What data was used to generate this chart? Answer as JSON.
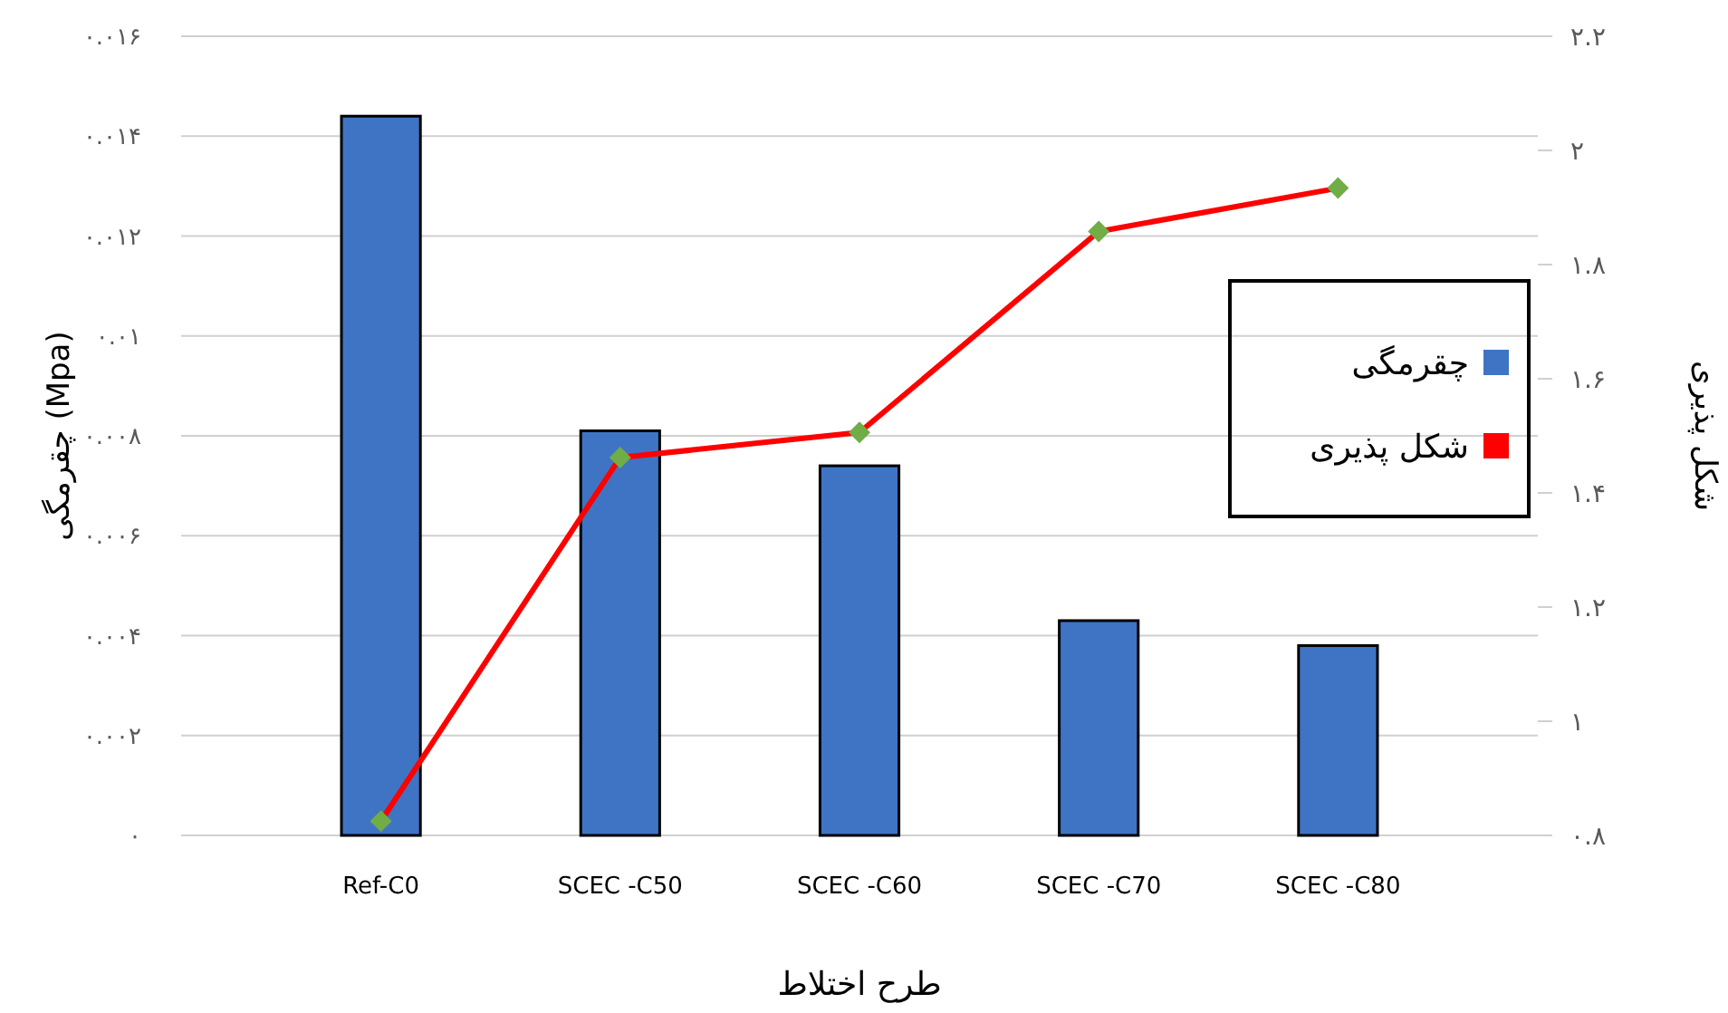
{
  "chart_data": {
    "type": "bar",
    "xlabel": "طرح اختلاط",
    "ylabel": "چقرمگی (Mpa)",
    "y2label": "شکل پذیری",
    "categories": [
      "Ref-C0",
      "SCEC -C50",
      "SCEC -C60",
      "SCEC -C70",
      "SCEC -C80"
    ],
    "series": [
      {
        "name": "چقرمگی",
        "color": "#3f74c4",
        "values": [
          0.0144,
          0.0081,
          0.0074,
          0.0043,
          0.0038
        ]
      },
      {
        "name": "شکل پذیری",
        "type": "line",
        "axis": "y2",
        "color": "#ff0000",
        "marker": "diamond",
        "values": [
          0.825,
          1.462,
          1.506,
          1.858,
          1.934
        ]
      }
    ],
    "ylim": [
      0,
      0.016
    ],
    "yticks": [
      {
        "value": 0,
        "label": "۰"
      },
      {
        "value": 0.002,
        "label": "۰.۰۰۲"
      },
      {
        "value": 0.004,
        "label": "۰.۰۰۴"
      },
      {
        "value": 0.006,
        "label": "۰.۰۰۶"
      },
      {
        "value": 0.008,
        "label": "۰.۰۰۸"
      },
      {
        "value": 0.01,
        "label": "۰.۰۱"
      },
      {
        "value": 0.012,
        "label": "۰.۰۱۲"
      },
      {
        "value": 0.014,
        "label": "۰.۰۱۴"
      },
      {
        "value": 0.016,
        "label": "۰.۰۱۶"
      }
    ],
    "y2lim": [
      0.8,
      2.2
    ],
    "y2ticks": [
      {
        "value": 0.8,
        "label": "۰.۸"
      },
      {
        "value": 1,
        "label": "۱"
      },
      {
        "value": 1.2,
        "label": "۱.۲"
      },
      {
        "value": 1.4,
        "label": "۱.۴"
      },
      {
        "value": 1.6,
        "label": "۱.۶"
      },
      {
        "value": 1.8,
        "label": "۱.۸"
      },
      {
        "value": 2,
        "label": "۲"
      },
      {
        "value": 2.2,
        "label": "۲.۲"
      }
    ],
    "grid": "y",
    "legend": "right",
    "line_style": "solid"
  }
}
